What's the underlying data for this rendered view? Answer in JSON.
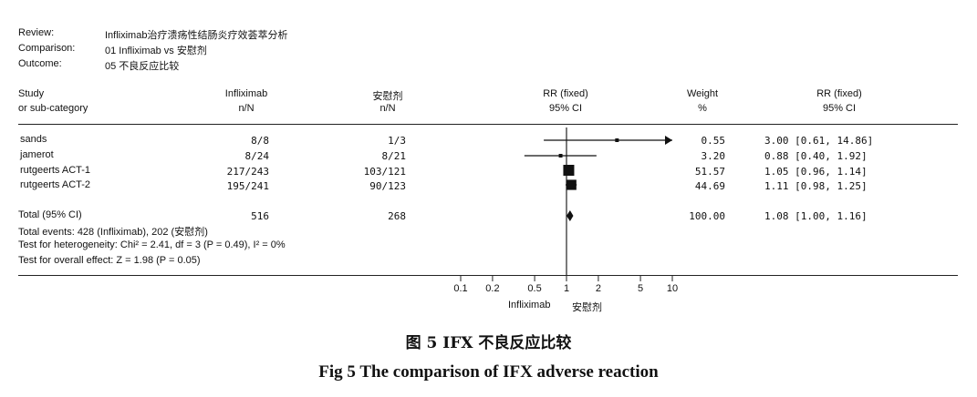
{
  "meta": {
    "review_label": "Review:",
    "review_value": "Infliximab治疗溃疡性结肠炎疗效荟萃分析",
    "comparison_label": "Comparison:",
    "comparison_value": "01 Infliximab vs 安慰剂",
    "outcome_label": "Outcome:",
    "outcome_value": "05 不良反应比较"
  },
  "headers": {
    "study_line1": "Study",
    "study_line2": "or sub-category",
    "treat_line1": "Infliximab",
    "treat_line2": "n/N",
    "ctrl_line1": "安慰剂",
    "ctrl_line2": "n/N",
    "rr_line1": "RR (fixed)",
    "rr_line2": "95% CI",
    "weight_line1": "Weight",
    "weight_line2": "%",
    "rrval_line1": "RR (fixed)",
    "rrval_line2": "95% CI"
  },
  "rows": [
    {
      "study": "sands",
      "treat": "8/8",
      "ctrl": "1/3",
      "weight": "0.55",
      "rr_text": "3.00 [0.61, 14.86]"
    },
    {
      "study": "jamerot",
      "treat": "8/24",
      "ctrl": "8/21",
      "weight": "3.20",
      "rr_text": "0.88 [0.40, 1.92]"
    },
    {
      "study": "rutgeerts ACT-1",
      "treat": "217/243",
      "ctrl": "103/121",
      "weight": "51.57",
      "rr_text": "1.05 [0.96, 1.14]"
    },
    {
      "study": "rutgeerts ACT-2",
      "treat": "195/241",
      "ctrl": "90/123",
      "weight": "44.69",
      "rr_text": "1.11 [0.98, 1.25]"
    }
  ],
  "total": {
    "label": "Total (95% CI)",
    "treat": "516",
    "ctrl": "268",
    "weight": "100.00",
    "rr_text": "1.08 [1.00, 1.16]",
    "events": "Total events: 428 (Infliximab), 202 (安慰剂)",
    "heterogeneity": "Test for heterogeneity: Chi² = 2.41, df = 3 (P = 0.49), I² = 0%",
    "overall": "Test for overall effect: Z = 1.98 (P = 0.05)"
  },
  "axis": {
    "tick_labels": [
      "0.1",
      "0.2",
      "0.5",
      "1",
      "2",
      "5",
      "10"
    ],
    "favours_left": "Infliximab",
    "favours_right": "安慰剂"
  },
  "caption": {
    "cn": "图 5   IFX 不良反应比较",
    "en": "Fig 5   The comparison of IFX adverse reaction"
  },
  "chart_data": {
    "type": "forest",
    "scale": "log",
    "xlim": [
      0.1,
      10
    ],
    "ticks": [
      0.1,
      0.2,
      0.5,
      1,
      2,
      5,
      10
    ],
    "reference_line": 1,
    "studies": [
      {
        "name": "sands",
        "rr": 3.0,
        "ci_low": 0.61,
        "ci_high": 14.86,
        "weight": 0.55
      },
      {
        "name": "jamerot",
        "rr": 0.88,
        "ci_low": 0.4,
        "ci_high": 1.92,
        "weight": 3.2
      },
      {
        "name": "rutgeerts ACT-1",
        "rr": 1.05,
        "ci_low": 0.96,
        "ci_high": 1.14,
        "weight": 51.57
      },
      {
        "name": "rutgeerts ACT-2",
        "rr": 1.11,
        "ci_low": 0.98,
        "ci_high": 1.25,
        "weight": 44.69
      }
    ],
    "pooled": {
      "rr": 1.08,
      "ci_low": 1.0,
      "ci_high": 1.16
    }
  }
}
